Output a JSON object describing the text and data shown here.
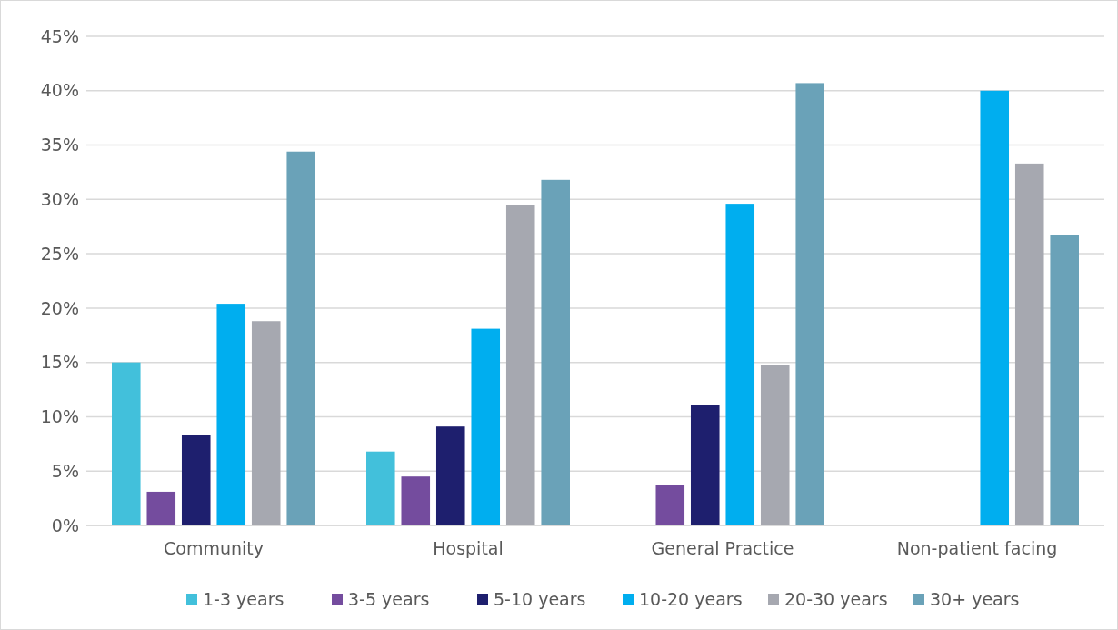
{
  "chart_data": {
    "type": "bar",
    "categories": [
      "Community",
      "Hospital",
      "General Practice",
      "Non-patient facing"
    ],
    "series": [
      {
        "name": "1-3 years",
        "color": "#42c0db",
        "values": [
          15.0,
          6.8,
          0,
          0
        ]
      },
      {
        "name": "3-5 years",
        "color": "#744c9e",
        "values": [
          3.1,
          4.5,
          3.7,
          0
        ]
      },
      {
        "name": "5-10 years",
        "color": "#1e1f6e",
        "values": [
          8.3,
          9.1,
          11.1,
          0
        ]
      },
      {
        "name": "10-20 years",
        "color": "#00aeef",
        "values": [
          20.4,
          18.1,
          29.6,
          40.0
        ]
      },
      {
        "name": "20-30 years",
        "color": "#a6a8b0",
        "values": [
          18.8,
          29.5,
          14.8,
          33.3
        ]
      },
      {
        "name": "30+ years",
        "color": "#6aa2b8",
        "values": [
          34.4,
          31.8,
          40.7,
          26.7
        ]
      }
    ],
    "ylim": [
      0,
      45
    ],
    "yticks": [
      {
        "value": 0,
        "label": "0%"
      },
      {
        "value": 5,
        "label": "5%"
      },
      {
        "value": 10,
        "label": "10%"
      },
      {
        "value": 15,
        "label": "15%"
      },
      {
        "value": 20,
        "label": "20%"
      },
      {
        "value": 25,
        "label": "25%"
      },
      {
        "value": 30,
        "label": "30%"
      },
      {
        "value": 35,
        "label": "35%"
      },
      {
        "value": 40,
        "label": "40%"
      },
      {
        "value": 45,
        "label": "45%"
      }
    ],
    "grid": "y",
    "legend": "bottom"
  }
}
